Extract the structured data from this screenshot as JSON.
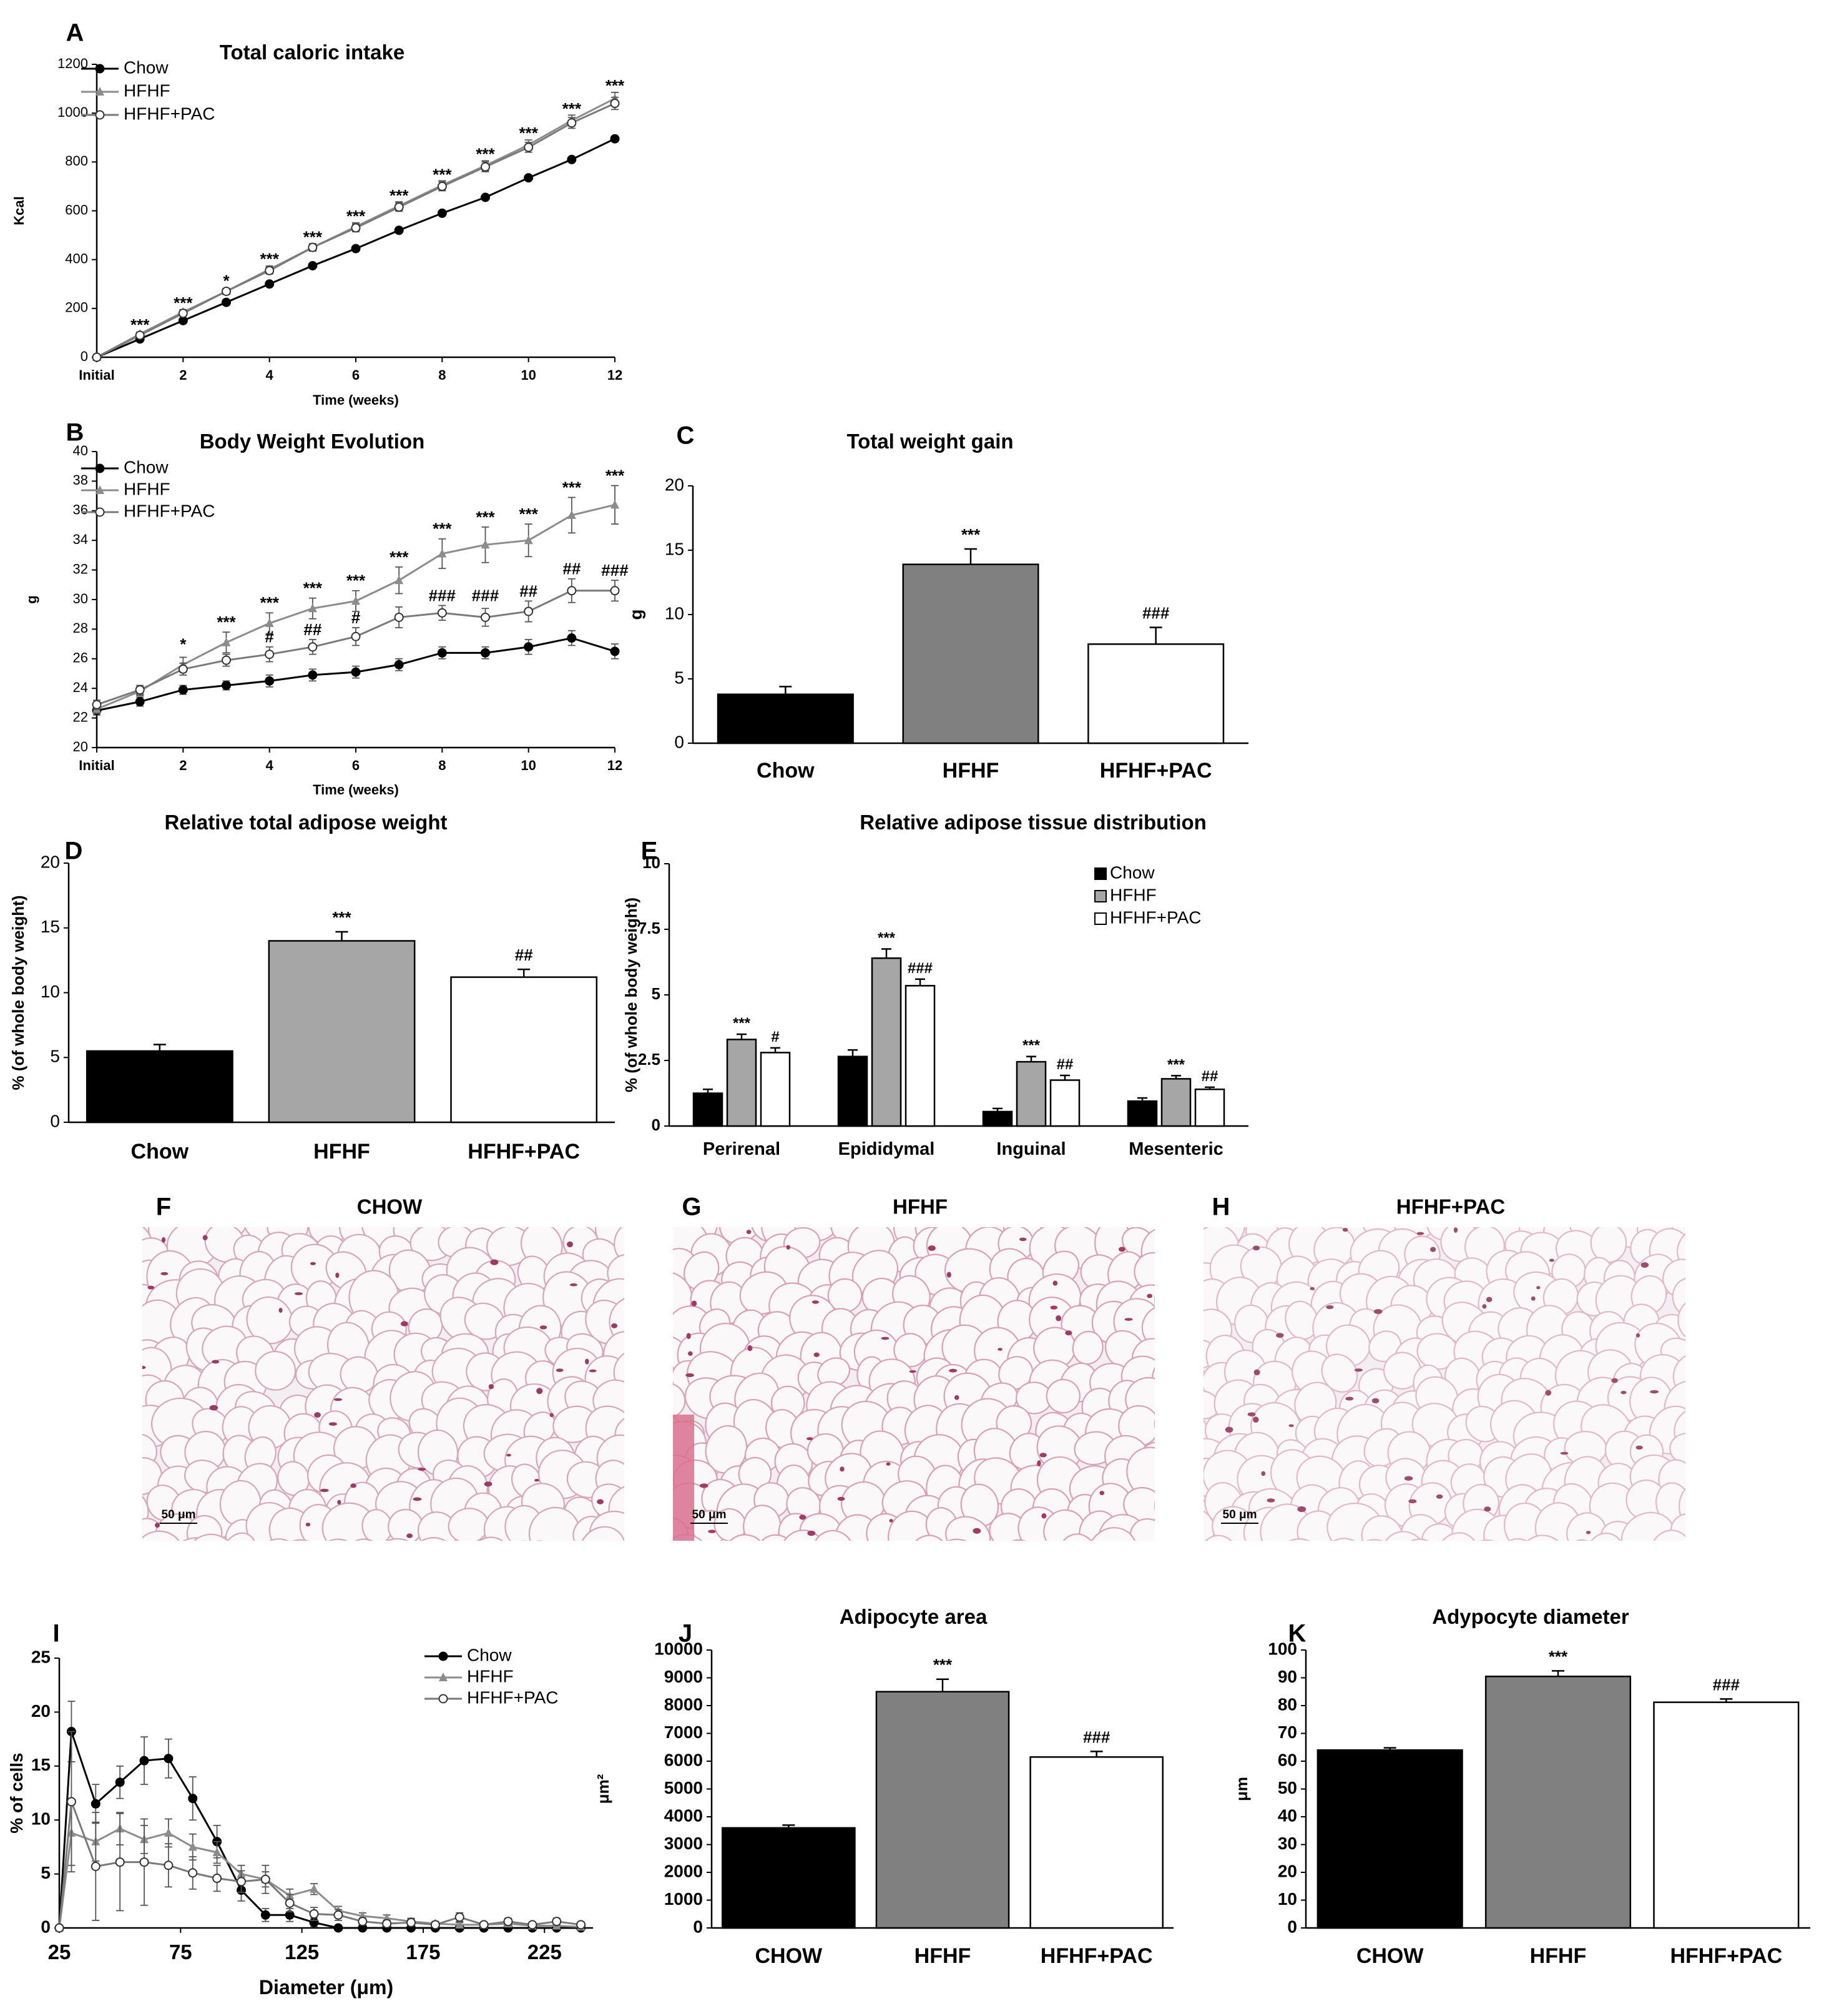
{
  "colors": {
    "chow": "#000000",
    "hfhf_light": "#a6a6a6",
    "hfhf_dark": "#808080",
    "pac": "#ffffff",
    "hfhf_line": "#8c8c8c"
  },
  "panels": [
    {
      "letter": "A",
      "chart_index": 0
    },
    {
      "letter": "B",
      "chart_index": 1
    },
    {
      "letter": "C",
      "chart_index": 2
    },
    {
      "letter": "D",
      "chart_index": 3
    },
    {
      "letter": "E",
      "chart_index": 4
    },
    {
      "letter": "F"
    },
    {
      "letter": "G"
    },
    {
      "letter": "H"
    },
    {
      "letter": "I",
      "chart_index": 5
    },
    {
      "letter": "J",
      "chart_index": 6
    },
    {
      "letter": "K",
      "chart_index": 7
    }
  ],
  "histology": [
    {
      "letter": "F",
      "title": "CHOW",
      "scale_bar": "50 μm",
      "icon": "adipose-histology-image"
    },
    {
      "letter": "G",
      "title": "HFHF",
      "scale_bar": "50 μm",
      "icon": "adipose-histology-image"
    },
    {
      "letter": "H",
      "title": "HFHF+PAC",
      "scale_bar": "50 μm",
      "icon": "adipose-histology-image"
    }
  ],
  "chart_data": [
    {
      "id": "A",
      "type": "line",
      "title": "Total caloric intake",
      "xlabel": "Time (weeks)",
      "ylabel": "Kcal",
      "x": [
        0,
        1,
        2,
        3,
        4,
        5,
        6,
        7,
        8,
        9,
        10,
        11,
        12
      ],
      "xticks": [
        0,
        2,
        4,
        6,
        8,
        10,
        12
      ],
      "xticklabels": [
        "Initial",
        "2",
        "4",
        "6",
        "8",
        "10",
        "12"
      ],
      "ylim": [
        0,
        1200
      ],
      "yticks": [
        0,
        200,
        400,
        600,
        800,
        1000,
        1200
      ],
      "legend": [
        "Chow",
        "HFHF",
        "HFHF+PAC"
      ],
      "legend_position": "top-left",
      "series": [
        {
          "name": "Chow",
          "values": [
            0,
            75,
            150,
            225,
            300,
            375,
            445,
            520,
            590,
            655,
            735,
            810,
            895
          ],
          "err": [
            0,
            0,
            0,
            0,
            0,
            0,
            0,
            0,
            0,
            0,
            0,
            0,
            0
          ]
        },
        {
          "name": "HFHF",
          "values": [
            0,
            95,
            185,
            270,
            360,
            450,
            535,
            620,
            705,
            785,
            870,
            970,
            1060
          ],
          "err": [
            0,
            8,
            10,
            12,
            14,
            15,
            16,
            17,
            18,
            20,
            20,
            22,
            25
          ]
        },
        {
          "name": "HFHF+PAC",
          "values": [
            0,
            90,
            180,
            270,
            355,
            450,
            530,
            615,
            700,
            780,
            860,
            960,
            1040
          ],
          "err": [
            0,
            8,
            10,
            12,
            14,
            15,
            16,
            17,
            18,
            20,
            20,
            22,
            25
          ]
        }
      ],
      "annotations": [
        {
          "x": 1,
          "y": 110,
          "text": "***"
        },
        {
          "x": 2,
          "y": 200,
          "text": "***"
        },
        {
          "x": 3,
          "y": 290,
          "text": "*"
        },
        {
          "x": 4,
          "y": 380,
          "text": "***"
        },
        {
          "x": 5,
          "y": 470,
          "text": "***"
        },
        {
          "x": 6,
          "y": 555,
          "text": "***"
        },
        {
          "x": 7,
          "y": 640,
          "text": "***"
        },
        {
          "x": 8,
          "y": 725,
          "text": "***"
        },
        {
          "x": 9,
          "y": 810,
          "text": "***"
        },
        {
          "x": 10,
          "y": 895,
          "text": "***"
        },
        {
          "x": 11,
          "y": 995,
          "text": "***"
        },
        {
          "x": 12,
          "y": 1090,
          "text": "***"
        }
      ]
    },
    {
      "id": "B",
      "type": "line",
      "title": "Body Weight Evolution",
      "xlabel": "Time (weeks)",
      "ylabel": "g",
      "x": [
        0,
        1,
        2,
        3,
        4,
        5,
        6,
        7,
        8,
        9,
        10,
        11,
        12
      ],
      "xticks": [
        0,
        2,
        4,
        6,
        8,
        10,
        12
      ],
      "xticklabels": [
        "Initial",
        "2",
        "4",
        "6",
        "8",
        "10",
        "12"
      ],
      "ylim": [
        20,
        40
      ],
      "yticks": [
        20,
        22,
        24,
        26,
        28,
        30,
        32,
        34,
        36,
        38,
        40
      ],
      "legend": [
        "Chow",
        "HFHF",
        "HFHF+PAC"
      ],
      "legend_position": "top-left",
      "series": [
        {
          "name": "Chow",
          "values": [
            22.5,
            23.1,
            23.9,
            24.2,
            24.5,
            24.9,
            25.1,
            25.6,
            26.4,
            26.4,
            26.8,
            27.4,
            26.5
          ],
          "err": [
            0.3,
            0.3,
            0.3,
            0.3,
            0.4,
            0.4,
            0.4,
            0.4,
            0.4,
            0.4,
            0.5,
            0.5,
            0.5
          ]
        },
        {
          "name": "HFHF",
          "values": [
            22.6,
            23.8,
            25.6,
            27.1,
            28.4,
            29.4,
            29.9,
            31.3,
            33.1,
            33.7,
            34.0,
            35.7,
            36.4
          ],
          "err": [
            0.3,
            0.3,
            0.5,
            0.7,
            0.7,
            0.7,
            0.7,
            0.9,
            1.0,
            1.2,
            1.1,
            1.2,
            1.3
          ]
        },
        {
          "name": "HFHF+PAC",
          "values": [
            22.9,
            23.9,
            25.3,
            25.9,
            26.3,
            26.8,
            27.5,
            28.8,
            29.1,
            28.8,
            29.2,
            30.6,
            30.6
          ],
          "err": [
            0.3,
            0.3,
            0.4,
            0.4,
            0.5,
            0.5,
            0.6,
            0.7,
            0.5,
            0.6,
            0.7,
            0.8,
            0.7
          ]
        }
      ],
      "annotations": [
        {
          "x": 2,
          "y": 26.6,
          "text": "*"
        },
        {
          "x": 3,
          "y": 28.1,
          "text": "***"
        },
        {
          "x": 4,
          "y": 29.4,
          "text": "***"
        },
        {
          "x": 5,
          "y": 30.4,
          "text": "***"
        },
        {
          "x": 6,
          "y": 30.9,
          "text": "***"
        },
        {
          "x": 7,
          "y": 32.5,
          "text": "***"
        },
        {
          "x": 8,
          "y": 34.4,
          "text": "***"
        },
        {
          "x": 9,
          "y": 35.2,
          "text": "***"
        },
        {
          "x": 10,
          "y": 35.4,
          "text": "***"
        },
        {
          "x": 11,
          "y": 37.2,
          "text": "***"
        },
        {
          "x": 12,
          "y": 38.0,
          "text": "***"
        },
        {
          "x": 4,
          "y": 27.1,
          "text": "#"
        },
        {
          "x": 5,
          "y": 27.6,
          "text": "##"
        },
        {
          "x": 6,
          "y": 28.4,
          "text": "#"
        },
        {
          "x": 8,
          "y": 29.9,
          "text": "###"
        },
        {
          "x": 9,
          "y": 29.9,
          "text": "###"
        },
        {
          "x": 10,
          "y": 30.2,
          "text": "##"
        },
        {
          "x": 11,
          "y": 31.7,
          "text": "##"
        },
        {
          "x": 12,
          "y": 31.6,
          "text": "###"
        }
      ]
    },
    {
      "id": "C",
      "type": "bar",
      "title": "Total weight gain",
      "ylabel": "g",
      "xlabel": "",
      "categories": [
        "Chow",
        "HFHF",
        "HFHF+PAC"
      ],
      "values": [
        3.8,
        13.9,
        7.7
      ],
      "err": [
        0.6,
        1.2,
        1.3
      ],
      "fills": [
        "#000000",
        "#808080",
        "#ffffff"
      ],
      "sig": [
        "",
        "***",
        "###"
      ],
      "ylim": [
        0,
        20
      ],
      "yticks": [
        0,
        5,
        10,
        15,
        20
      ]
    },
    {
      "id": "D",
      "type": "bar",
      "title": "Relative total adipose weight",
      "ylabel": "% (of whole body weight)",
      "xlabel": "",
      "categories": [
        "Chow",
        "HFHF",
        "HFHF+PAC"
      ],
      "values": [
        5.5,
        14.0,
        11.2
      ],
      "err": [
        0.5,
        0.7,
        0.6
      ],
      "fills": [
        "#000000",
        "#a6a6a6",
        "#ffffff"
      ],
      "sig": [
        "",
        "***",
        "##"
      ],
      "ylim": [
        0,
        20
      ],
      "yticks": [
        0,
        5,
        10,
        15,
        20
      ]
    },
    {
      "id": "E",
      "type": "bar",
      "title": "Relative adipose tissue distribution",
      "ylabel": "% (of whole body weight)",
      "xlabel": "",
      "categories": [
        "Perirenal",
        "Epididymal",
        "Inguinal",
        "Mesenteric"
      ],
      "ylim": [
        0,
        10
      ],
      "yticks": [
        0.0,
        2.5,
        5.0,
        7.5,
        10.0
      ],
      "legend_position": "top-right",
      "series": [
        {
          "name": "Chow",
          "values": [
            1.25,
            2.65,
            0.55,
            0.95
          ],
          "err": [
            0.15,
            0.25,
            0.12,
            0.12
          ],
          "sig": [
            "",
            "",
            "",
            ""
          ]
        },
        {
          "name": "HFHF",
          "values": [
            3.3,
            6.4,
            2.45,
            1.8
          ],
          "err": [
            0.2,
            0.35,
            0.2,
            0.12
          ],
          "sig": [
            "***",
            "***",
            "***",
            "***"
          ]
        },
        {
          "name": "HFHF+PAC",
          "values": [
            2.8,
            5.35,
            1.75,
            1.4
          ],
          "err": [
            0.18,
            0.25,
            0.18,
            0.08
          ],
          "sig": [
            "#",
            "###",
            "##",
            "##"
          ]
        }
      ]
    },
    {
      "id": "I",
      "type": "line",
      "title": "",
      "xlabel": "Diameter (μm)",
      "ylabel": "% of cells",
      "x": [
        25,
        30,
        40,
        50,
        60,
        70,
        80,
        90,
        100,
        110,
        120,
        130,
        140,
        150,
        160,
        170,
        180,
        190,
        200,
        210,
        220,
        230,
        240
      ],
      "xlim": [
        25,
        245
      ],
      "xticks": [
        25,
        75,
        125,
        175,
        225
      ],
      "ylim": [
        0,
        25
      ],
      "yticks": [
        0,
        5,
        10,
        15,
        20,
        25
      ],
      "legend": [
        "Chow",
        "HFHF",
        "HFHF+PAC"
      ],
      "legend_position": "top-right",
      "series": [
        {
          "name": "Chow",
          "values": [
            0,
            18.2,
            11.5,
            13.5,
            15.5,
            15.7,
            12,
            8,
            3.5,
            1.2,
            1.2,
            0.5,
            0,
            0,
            0,
            0,
            0,
            0,
            0,
            0,
            0,
            0,
            0
          ],
          "err": [
            0,
            2.8,
            1.8,
            1.5,
            2.2,
            1.8,
            2,
            1.5,
            1,
            0.6,
            0.6,
            0.4,
            0,
            0,
            0,
            0,
            0,
            0,
            0,
            0,
            0,
            0,
            0
          ]
        },
        {
          "name": "HFHF",
          "values": [
            0,
            8.8,
            8,
            9.2,
            8.2,
            8.8,
            7.5,
            7,
            5,
            4.5,
            3,
            3.6,
            1.6,
            1.1,
            0.9,
            0.6,
            0.4,
            0.3,
            0.3,
            0.4,
            0.2,
            0.2,
            0.1
          ],
          "err": [
            0,
            3,
            1.8,
            1.5,
            1.3,
            1.3,
            1.2,
            1,
            0.8,
            0.7,
            0.6,
            0.5,
            0.4,
            0.3,
            0.3,
            0.3,
            0.2,
            0.2,
            0.2,
            0.2,
            0.1,
            0.1,
            0.1
          ]
        },
        {
          "name": "HFHF+PAC",
          "values": [
            0,
            11.7,
            5.7,
            6.1,
            6.1,
            5.8,
            5.1,
            4.6,
            4.3,
            4.5,
            2.3,
            1.3,
            1.2,
            0.6,
            0.4,
            0.5,
            0.3,
            1,
            0.3,
            0.6,
            0.3,
            0.6,
            0.3
          ],
          "err": [
            0,
            6.5,
            5,
            4.5,
            4,
            2,
            1.5,
            1.2,
            1,
            1.3,
            0.8,
            0.6,
            0.5,
            0.3,
            0.3,
            0.3,
            0.2,
            0.4,
            0.2,
            0.3,
            0.2,
            0.3,
            0.2
          ]
        }
      ]
    },
    {
      "id": "J",
      "type": "bar",
      "title": "Adipocyte area",
      "ylabel": "μm²",
      "xlabel": "",
      "categories": [
        "CHOW",
        "HFHF",
        "HFHF+PAC"
      ],
      "values": [
        3600,
        8500,
        6150
      ],
      "err": [
        100,
        450,
        200
      ],
      "fills": [
        "#000000",
        "#808080",
        "#ffffff"
      ],
      "sig": [
        "",
        "***",
        "###"
      ],
      "ylim": [
        0,
        10000
      ],
      "yticks": [
        0,
        1000,
        2000,
        3000,
        4000,
        5000,
        6000,
        7000,
        8000,
        9000,
        10000
      ]
    },
    {
      "id": "K",
      "type": "bar",
      "title": "Adypocyte diameter",
      "ylabel": "μm",
      "xlabel": "",
      "categories": [
        "CHOW",
        "HFHF",
        "HFHF+PAC"
      ],
      "values": [
        64,
        90.5,
        81.2
      ],
      "err": [
        0.8,
        2.0,
        1.2
      ],
      "fills": [
        "#000000",
        "#808080",
        "#ffffff"
      ],
      "sig": [
        "",
        "***",
        "###"
      ],
      "ylim": [
        0,
        100
      ],
      "yticks": [
        0,
        10,
        20,
        30,
        40,
        50,
        60,
        70,
        80,
        90,
        100
      ]
    }
  ]
}
